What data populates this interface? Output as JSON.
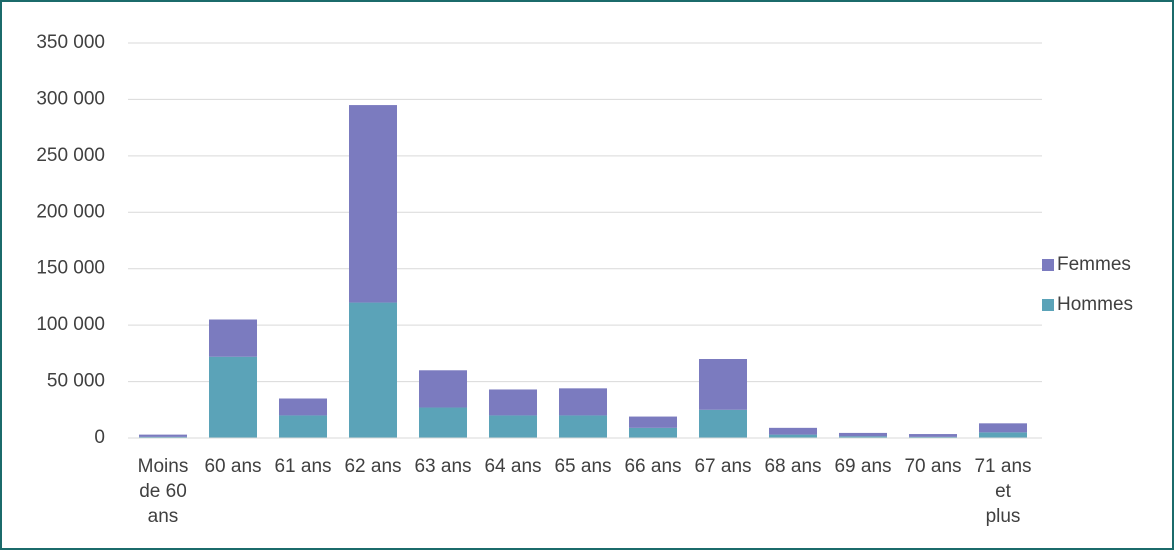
{
  "chart_data": {
    "type": "stacked-bar",
    "categories": [
      "Moins de 60 ans",
      "60 ans",
      "61 ans",
      "62 ans",
      "63 ans",
      "64 ans",
      "65 ans",
      "66 ans",
      "67 ans",
      "68 ans",
      "69 ans",
      "70 ans",
      "71 ans et plus"
    ],
    "series": [
      {
        "name": "Hommes",
        "color": "#5ba3b8",
        "values": [
          1000,
          72000,
          20000,
          120000,
          27000,
          20000,
          20000,
          9000,
          25000,
          3000,
          1500,
          1000,
          5000
        ]
      },
      {
        "name": "Femmes",
        "color": "#7b7bbf",
        "values": [
          2000,
          33000,
          15000,
          175000,
          33000,
          23000,
          24000,
          10000,
          45000,
          6000,
          3000,
          2500,
          8000
        ]
      }
    ],
    "ylim": [
      0,
      350000
    ],
    "yticks": [
      0,
      {
        "value": 50000,
        "label": "50 000"
      },
      {
        "value": 100000,
        "label": "100 000"
      },
      {
        "value": 150000,
        "label": "150 000"
      },
      {
        "value": 200000,
        "label": "200 000"
      },
      {
        "value": 250000,
        "label": "250 000"
      },
      {
        "value": 300000,
        "label": "300 000"
      },
      {
        "value": 350000,
        "label": "350 000"
      }
    ],
    "grid": true,
    "legend": "right"
  }
}
